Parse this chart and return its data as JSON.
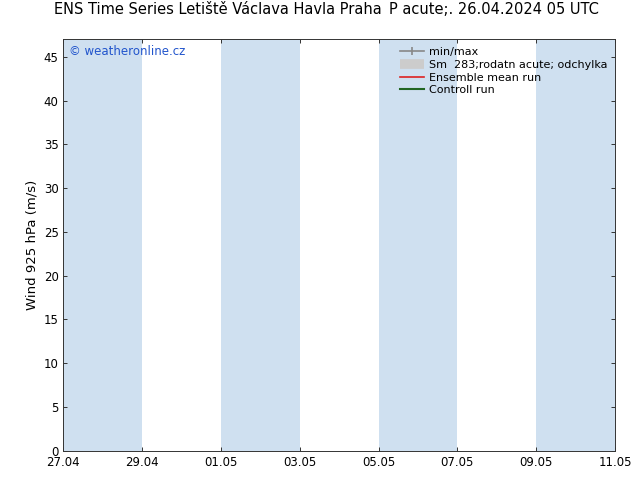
{
  "title_left": "ENS Time Series Letiště Václava Havla Praha",
  "title_right": "P acute;. 26.04.2024 05 UTC",
  "ylabel": "Wind 925 hPa (m/s)",
  "ylim": [
    0,
    47
  ],
  "yticks": [
    0,
    5,
    10,
    15,
    20,
    25,
    30,
    35,
    40,
    45
  ],
  "bg_color": "#ffffff",
  "plot_bg": "#ffffff",
  "band_color": "#cfe0f0",
  "watermark": "© weatheronline.cz",
  "watermark_color": "#2255cc",
  "x_tick_labels": [
    "27.04",
    "29.04",
    "01.05",
    "03.05",
    "05.05",
    "07.05",
    "09.05",
    "11.05"
  ],
  "x_tick_positions": [
    0,
    2,
    4,
    6,
    8,
    10,
    12,
    14
  ],
  "xlim": [
    0,
    14
  ],
  "band_spans": [
    [
      0,
      2
    ],
    [
      4,
      6
    ],
    [
      8,
      10
    ],
    [
      12,
      14
    ]
  ],
  "title_fontsize": 10.5,
  "tick_fontsize": 8.5,
  "label_fontsize": 9.5,
  "legend_fontsize": 8
}
